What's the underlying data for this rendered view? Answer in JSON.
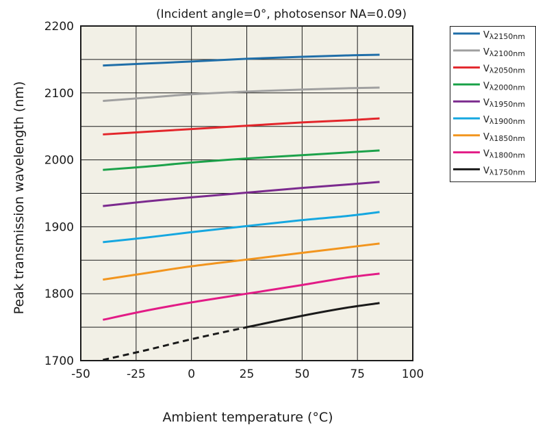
{
  "chart_data": {
    "type": "line",
    "subtitle": "(Incident angle=0°, photosensor NA=0.09)",
    "xlabel": "Ambient temperature (°C)",
    "ylabel": "Peak transmission wavelength (nm)",
    "xlim": [
      -50,
      100
    ],
    "ylim": [
      1700,
      2200
    ],
    "xticks": [
      -50,
      -25,
      0,
      25,
      50,
      75,
      100
    ],
    "yticks": [
      1700,
      1800,
      1900,
      2000,
      2100,
      2200
    ],
    "x_tick_labels": [
      "-50",
      "-25",
      "0",
      "25",
      "50",
      "75",
      "100"
    ],
    "y_tick_labels": [
      "1700",
      "1800",
      "1900",
      "2000",
      "2100",
      "2200"
    ],
    "grid": true,
    "plot_background": "#f2f0e6",
    "legend_position": "top-right, outside plot",
    "series": [
      {
        "name_prefix": "V",
        "name_sub": "λ2150nm",
        "color": "#1f6ea8",
        "line": "solid",
        "points": [
          [
            -40,
            2141
          ],
          [
            -20,
            2144
          ],
          [
            0,
            2147
          ],
          [
            25,
            2151
          ],
          [
            50,
            2154
          ],
          [
            70,
            2156
          ],
          [
            85,
            2157
          ]
        ]
      },
      {
        "name_prefix": "V",
        "name_sub": "λ2100nm",
        "color": "#a0a0a0",
        "line": "solid",
        "points": [
          [
            -40,
            2088
          ],
          [
            -20,
            2093
          ],
          [
            0,
            2098
          ],
          [
            25,
            2102
          ],
          [
            50,
            2105
          ],
          [
            70,
            2107
          ],
          [
            85,
            2108
          ]
        ]
      },
      {
        "name_prefix": "V",
        "name_sub": "λ2050nm",
        "color": "#e3262b",
        "line": "solid",
        "points": [
          [
            -40,
            2038
          ],
          [
            -20,
            2042
          ],
          [
            0,
            2046
          ],
          [
            25,
            2051
          ],
          [
            50,
            2056
          ],
          [
            70,
            2059
          ],
          [
            85,
            2062
          ]
        ]
      },
      {
        "name_prefix": "V",
        "name_sub": "λ2000nm",
        "color": "#1ca24a",
        "line": "solid",
        "points": [
          [
            -40,
            1985
          ],
          [
            -20,
            1990
          ],
          [
            0,
            1996
          ],
          [
            25,
            2002
          ],
          [
            50,
            2007
          ],
          [
            70,
            2011
          ],
          [
            85,
            2014
          ]
        ]
      },
      {
        "name_prefix": "V",
        "name_sub": "λ1950nm",
        "color": "#7b2a8e",
        "line": "solid",
        "points": [
          [
            -40,
            1931
          ],
          [
            -20,
            1938
          ],
          [
            0,
            1944
          ],
          [
            25,
            1951
          ],
          [
            50,
            1958
          ],
          [
            70,
            1963
          ],
          [
            85,
            1967
          ]
        ]
      },
      {
        "name_prefix": "V",
        "name_sub": "λ1900nm",
        "color": "#15a7e0",
        "line": "solid",
        "points": [
          [
            -40,
            1877
          ],
          [
            -20,
            1884
          ],
          [
            0,
            1892
          ],
          [
            25,
            1901
          ],
          [
            50,
            1910
          ],
          [
            70,
            1916
          ],
          [
            85,
            1922
          ]
        ]
      },
      {
        "name_prefix": "V",
        "name_sub": "λ1850nm",
        "color": "#f2951e",
        "line": "solid",
        "points": [
          [
            -40,
            1821
          ],
          [
            -20,
            1831
          ],
          [
            0,
            1841
          ],
          [
            25,
            1851
          ],
          [
            50,
            1861
          ],
          [
            70,
            1869
          ],
          [
            85,
            1875
          ]
        ]
      },
      {
        "name_prefix": "V",
        "name_sub": "λ1800nm",
        "color": "#e21b86",
        "line": "solid",
        "points": [
          [
            -40,
            1761
          ],
          [
            -20,
            1775
          ],
          [
            0,
            1787
          ],
          [
            25,
            1800
          ],
          [
            50,
            1813
          ],
          [
            70,
            1824
          ],
          [
            85,
            1830
          ]
        ]
      },
      {
        "name_prefix": "V",
        "name_sub": "λ1750nm",
        "color": "#1a1a1a",
        "line": "dashed-then-solid",
        "dash_until_x": 25,
        "points": [
          [
            -40,
            1701
          ],
          [
            -20,
            1716
          ],
          [
            0,
            1732
          ],
          [
            25,
            1750
          ],
          [
            50,
            1767
          ],
          [
            70,
            1779
          ],
          [
            85,
            1786
          ]
        ]
      }
    ]
  }
}
